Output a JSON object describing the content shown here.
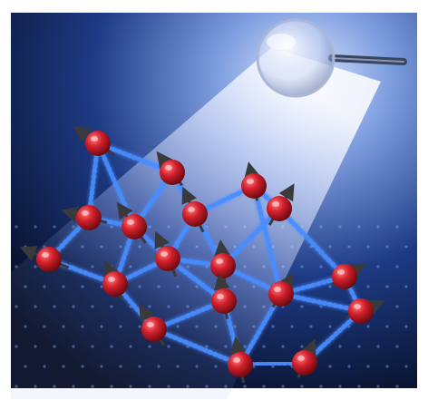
{
  "image": {
    "background_color": "#ffffff",
    "frame_color": "#0b1020",
    "glow_color": "#3f86ff",
    "ball_color": "#c81e2c",
    "arrow_color": "#3a3a3a"
  },
  "lattice": {
    "spin_count": 19,
    "bond_count": 32
  },
  "magnifier": {
    "icon": "magnifying-glass-icon"
  }
}
